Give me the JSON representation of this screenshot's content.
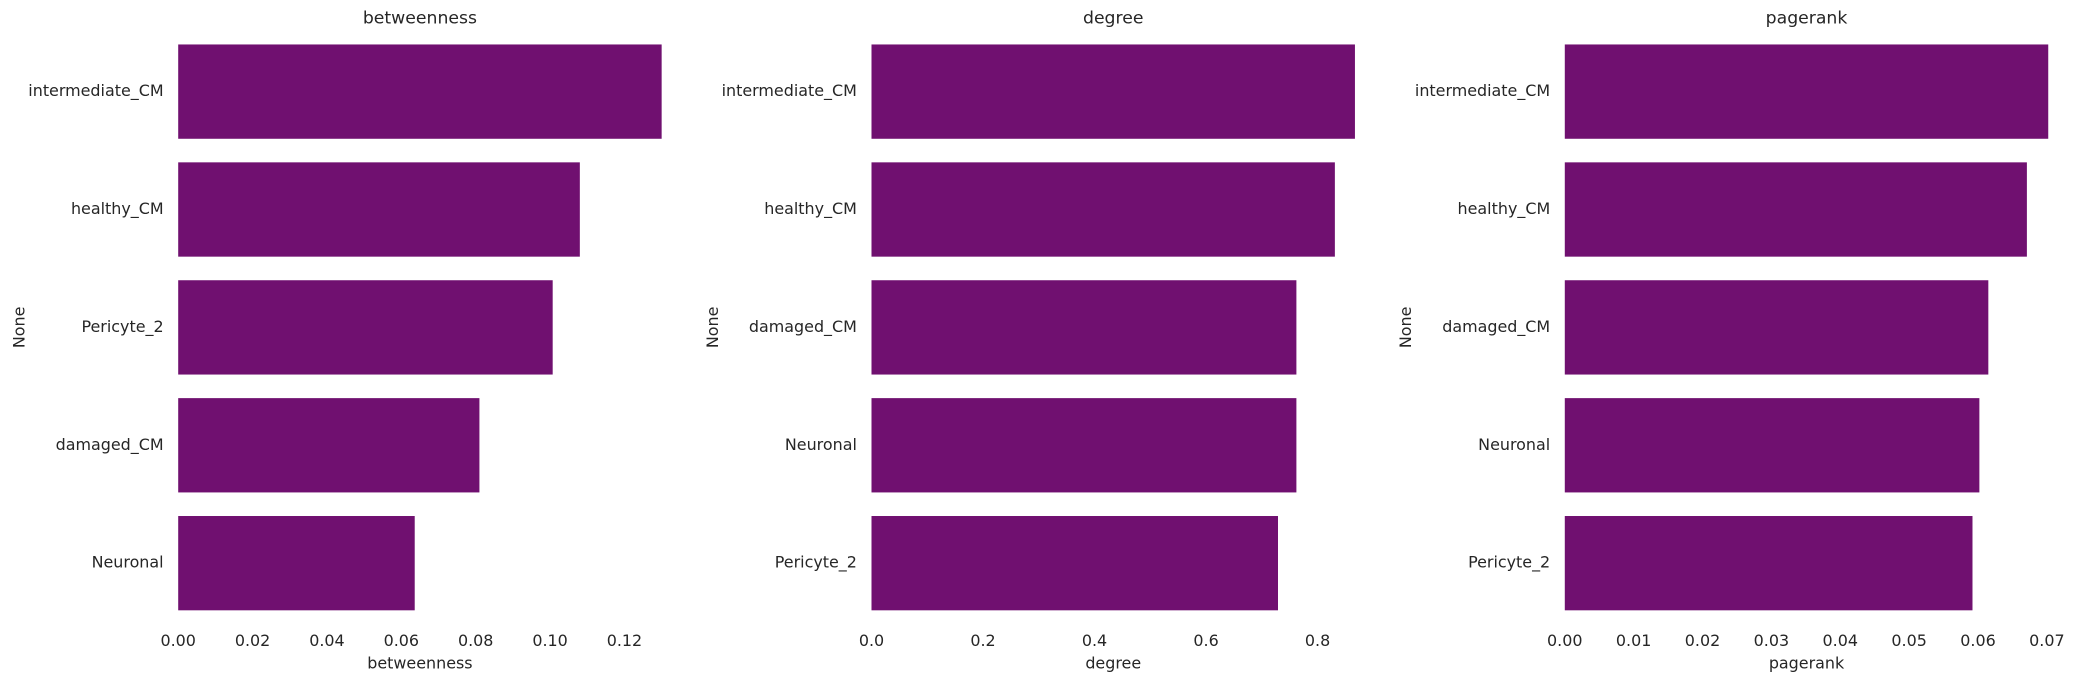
{
  "chart_data": [
    {
      "type": "bar",
      "orientation": "horizontal",
      "title": "betweenness",
      "xlabel": "betweenness",
      "ylabel": "None",
      "categories": [
        "intermediate_CM",
        "healthy_CM",
        "Pericyte_2",
        "damaged_CM",
        "Neuronal"
      ],
      "values": [
        0.13,
        0.108,
        0.1007,
        0.081,
        0.0636
      ],
      "color": "#701070",
      "xlim": [
        0,
        0.13
      ],
      "xticks": [
        {
          "value": 0,
          "label": "0.00"
        },
        0.02,
        0.04,
        0.06,
        0.08,
        {
          "value": 0.1,
          "label": "0.10"
        },
        0.12
      ]
    },
    {
      "type": "bar",
      "orientation": "horizontal",
      "title": "degree",
      "xlabel": "degree",
      "ylabel": "None",
      "categories": [
        "intermediate_CM",
        "healthy_CM",
        "damaged_CM",
        "Neuronal",
        "Pericyte_2"
      ],
      "values": [
        0.867,
        0.831,
        0.762,
        0.762,
        0.729
      ],
      "color": "#701070",
      "xlim": [
        0,
        0.867
      ],
      "xticks": [
        {
          "value": 0,
          "label": "0.0"
        },
        0.2,
        0.4,
        0.6,
        0.8
      ]
    },
    {
      "type": "bar",
      "orientation": "horizontal",
      "title": "pagerank",
      "xlabel": "pagerank",
      "ylabel": "None",
      "categories": [
        "intermediate_CM",
        "healthy_CM",
        "damaged_CM",
        "Neuronal",
        "Pericyte_2"
      ],
      "values": [
        0.0702,
        0.0671,
        0.0615,
        0.0602,
        0.0592
      ],
      "color": "#701070",
      "xlim": [
        0,
        0.0702
      ],
      "xticks": [
        {
          "value": 0,
          "label": "0.00"
        },
        0.01,
        0.02,
        0.03,
        0.04,
        0.05,
        0.06,
        0.07
      ]
    }
  ]
}
